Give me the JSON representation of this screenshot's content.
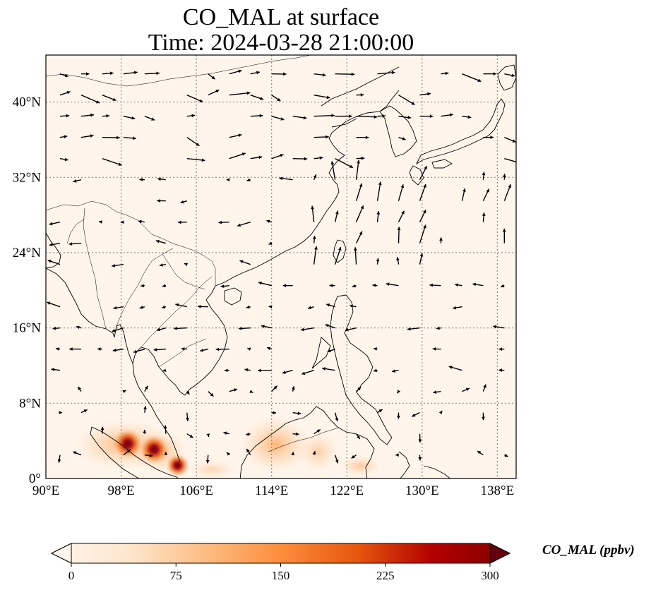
{
  "title": {
    "line1": "CO_MAL at surface",
    "line2": "Time: 2024-03-28 21:00:00"
  },
  "map": {
    "lon_range": [
      90,
      140
    ],
    "lat_range": [
      0,
      45
    ],
    "lon_ticks": [
      "90°E",
      "98°E",
      "106°E",
      "114°E",
      "122°E",
      "130°E",
      "138°E"
    ],
    "lat_ticks": [
      "0°",
      "8°N",
      "16°N",
      "24°N",
      "32°N",
      "40°N"
    ],
    "background_color": "#fff5eb",
    "gridlines": true,
    "layers": [
      "CO concentration field",
      "wind vectors",
      "coastlines",
      "country borders"
    ]
  },
  "colorbar": {
    "label": "CO_MAL (ppbv)",
    "ticks": [
      "0",
      "75",
      "150",
      "225",
      "300"
    ],
    "min": 0,
    "max": 300,
    "colormap": "OrRd",
    "colors": [
      "#fff5eb",
      "#fdd9b4",
      "#fdae6b",
      "#f16913",
      "#d94801",
      "#a50f15",
      "#67000d"
    ],
    "extend": "both"
  },
  "hotspots": [
    {
      "lon": 98.7,
      "lat": 3.7,
      "value": 300
    },
    {
      "lon": 101.5,
      "lat": 3.1,
      "value": 290
    },
    {
      "lon": 104.0,
      "lat": 1.4,
      "value": 200
    }
  ]
}
